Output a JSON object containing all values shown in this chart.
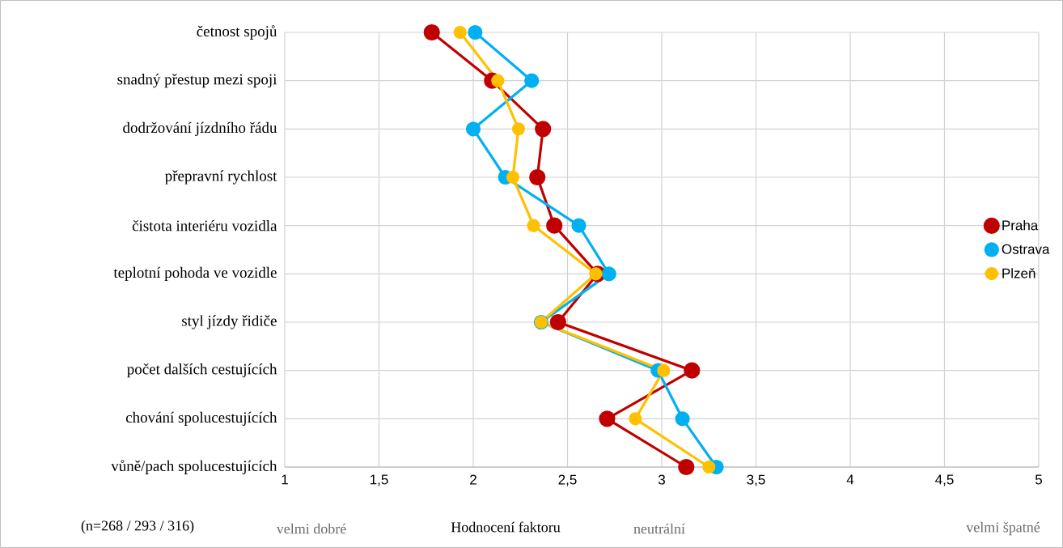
{
  "chart_data": {
    "type": "line",
    "orientation": "horizontal",
    "xlabel": "Hodnocení faktoru",
    "categories": [
      "četnost spojů",
      "snadný přestup mezi spoji",
      "dodržování jízdního řádu",
      "přepravní rychlost",
      "čistota interiéru vozidla",
      "teplotní pohoda ve vozidle",
      "styl jízdy řidiče",
      "počet dalších cestujících",
      "chování spolucestujících",
      "vůně/pach spolucestujících"
    ],
    "series": [
      {
        "name": "Praha",
        "color": "#c00000",
        "values": [
          1.78,
          2.1,
          2.37,
          2.34,
          2.43,
          2.66,
          2.45,
          3.16,
          2.71,
          3.13
        ]
      },
      {
        "name": "Ostrava",
        "color": "#00b0f0",
        "values": [
          2.01,
          2.31,
          2.0,
          2.17,
          2.56,
          2.72,
          2.36,
          2.98,
          3.11,
          3.29
        ]
      },
      {
        "name": "Plzeň",
        "color": "#ffc000",
        "values": [
          1.93,
          2.13,
          2.24,
          2.21,
          2.32,
          2.65,
          2.36,
          3.01,
          2.86,
          3.25
        ]
      }
    ],
    "xlim": [
      1,
      5
    ],
    "xticks": [
      1,
      {
        "value": 1.5,
        "label": "1,5"
      },
      2,
      {
        "value": 2.5,
        "label": "2,5"
      },
      3,
      {
        "value": 3.5,
        "label": "3,5"
      },
      4,
      {
        "value": 4.5,
        "label": "4,5"
      },
      5
    ],
    "grid": true,
    "legend": "right",
    "marker": "circle",
    "line_style": "solid",
    "annotations": [
      "(n=268 / 293 / 316)",
      "velmi dobré",
      "neutrální",
      "velmi špatné"
    ]
  }
}
